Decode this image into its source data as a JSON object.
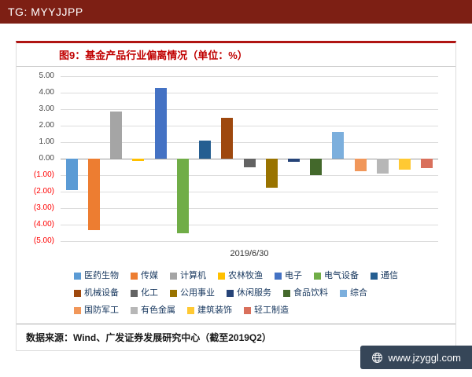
{
  "top_bar": {
    "text": "TG: MYYJJPP",
    "bg_color": "#7d1f14"
  },
  "figure": {
    "title": "图9：基金产品行业偏离情况（单位：%）",
    "title_color": "#c00000",
    "top_rule_color": "#b01513",
    "source_note": "数据来源：Wind、广发证券发展研究中心（截至2019Q2）"
  },
  "chart_data": {
    "type": "bar",
    "title": "图9：基金产品行业偏离情况（单位：%）",
    "x_label": "2019/6/30",
    "ylim": [
      -5,
      5
    ],
    "grid": true,
    "legend_position": "bottom",
    "y_tick_values": [
      5,
      4,
      3,
      2,
      1,
      0,
      -1,
      -2,
      -3,
      -4,
      -5
    ],
    "y_tick_labels": [
      "5.00",
      "4.00",
      "3.00",
      "2.00",
      "1.00",
      "0.00",
      "(1.00)",
      "(2.00)",
      "(3.00)",
      "(4.00)",
      "(5.00)"
    ],
    "negative_tick_color": "#ff0000",
    "series": [
      {
        "name": "医药生物",
        "value": -1.9,
        "color": "#5B9BD5"
      },
      {
        "name": "传媒",
        "value": -4.35,
        "color": "#ED7D31"
      },
      {
        "name": "计算机",
        "value": 2.85,
        "color": "#A5A5A5"
      },
      {
        "name": "农林牧渔",
        "value": -0.15,
        "color": "#FFC000"
      },
      {
        "name": "电子",
        "value": 4.3,
        "color": "#4472C4"
      },
      {
        "name": "电气设备",
        "value": -4.5,
        "color": "#70AD47"
      },
      {
        "name": "通信",
        "value": 1.1,
        "color": "#255E91"
      },
      {
        "name": "机械设备",
        "value": 2.5,
        "color": "#9E480E"
      },
      {
        "name": "化工",
        "value": -0.5,
        "color": "#636363"
      },
      {
        "name": "公用事业",
        "value": -1.75,
        "color": "#997300"
      },
      {
        "name": "休闲服务",
        "value": -0.2,
        "color": "#264478"
      },
      {
        "name": "食品饮料",
        "value": -1.0,
        "color": "#43682B"
      },
      {
        "name": "综合",
        "value": 1.6,
        "color": "#7CAFDD"
      },
      {
        "name": "国防军工",
        "value": -0.75,
        "color": "#F1975A"
      },
      {
        "name": "有色金属",
        "value": -0.9,
        "color": "#B7B7B7"
      },
      {
        "name": "建筑装饰",
        "value": -0.65,
        "color": "#FFC933"
      },
      {
        "name": "轻工制造",
        "value": -0.55,
        "color": "#D9705C"
      }
    ]
  },
  "site_badge": {
    "text": "www.jzyggl.com",
    "icon": "globe-icon",
    "bg_color": "#364658"
  }
}
